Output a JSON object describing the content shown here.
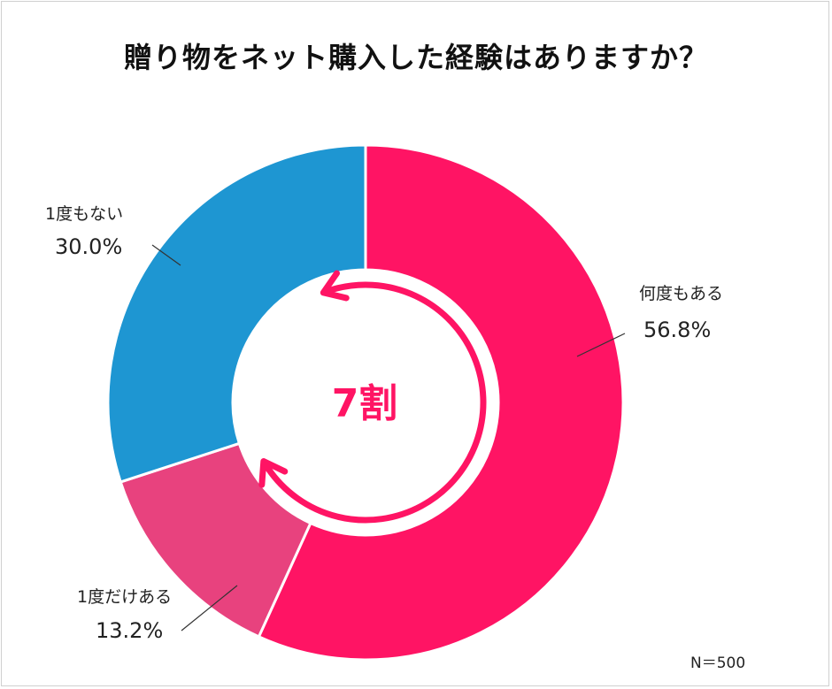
{
  "chart_data": {
    "type": "pie",
    "variant": "donut",
    "title": "贈り物をネット購入した経験はありますか？",
    "categories": [
      "何度もある",
      "1度だけある",
      "1度もない"
    ],
    "values": [
      56.8,
      13.2,
      30.0
    ],
    "value_labels": [
      "56.8%",
      "13.2%",
      "30.0%"
    ],
    "colors": [
      "#ff1464",
      "#e8427e",
      "#1e96d2"
    ],
    "center_label": "7割",
    "center_color": "#ff1464",
    "note": "N＝500",
    "legend": "none",
    "start": "top",
    "direction": "clockwise"
  }
}
